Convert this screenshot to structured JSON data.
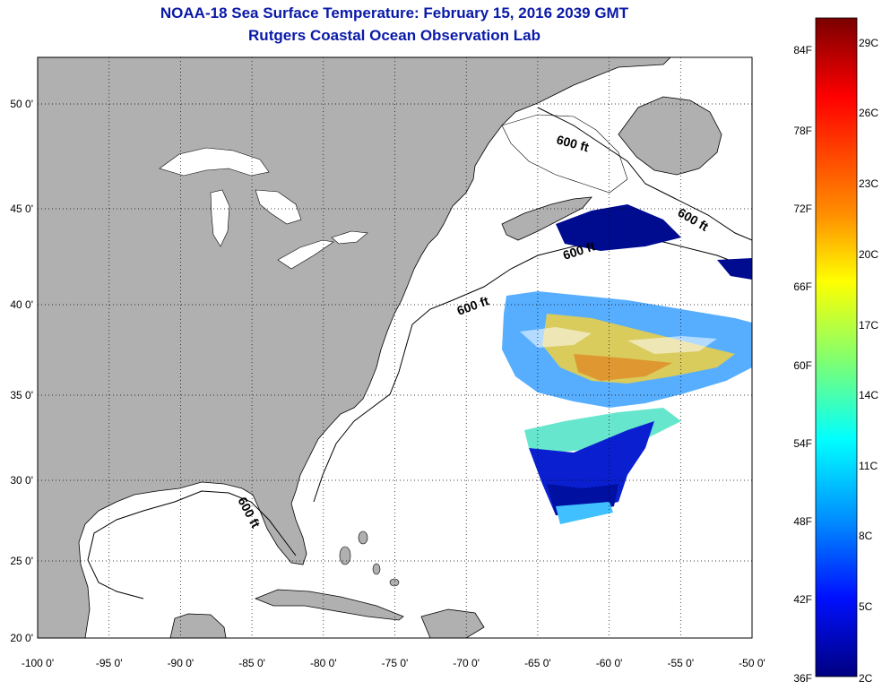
{
  "title_line1": "NOAA-18 Sea Surface Temperature:  February 15, 2016 2039 GMT",
  "title_line2": "Rutgers Coastal Ocean Observation Lab",
  "map": {
    "lon_labels": [
      "-100 0'",
      "-95 0'",
      "-90 0'",
      "-85 0'",
      "-80 0'",
      "-75 0'",
      "-70 0'",
      "-65 0'",
      "-60 0'",
      "-55 0'",
      "-50 0'"
    ],
    "lat_labels": [
      "50 0'",
      "45 0'",
      "40 0'",
      "35 0'",
      "30 0'",
      "25 0'",
      "20 0'"
    ],
    "contour_labels": [
      "600 ft",
      "600 ft",
      "600 ft",
      "600 ft",
      "600 ft"
    ],
    "land_color": "#b0b0b0",
    "ocean_color": "#ffffff"
  },
  "colorbar": {
    "fahrenheit_labels": [
      "84F",
      "78F",
      "72F",
      "66F",
      "60F",
      "54F",
      "48F",
      "42F",
      "36F"
    ],
    "celsius_labels": [
      "29C",
      "26C",
      "23C",
      "20C",
      "17C",
      "14C",
      "11C",
      "8C",
      "5C",
      "2C"
    ],
    "gradient_colors": [
      "#800000",
      "#ff0000",
      "#ff8000",
      "#ffff00",
      "#80ff80",
      "#00ffff",
      "#0080ff",
      "#0000ff",
      "#000080"
    ]
  }
}
